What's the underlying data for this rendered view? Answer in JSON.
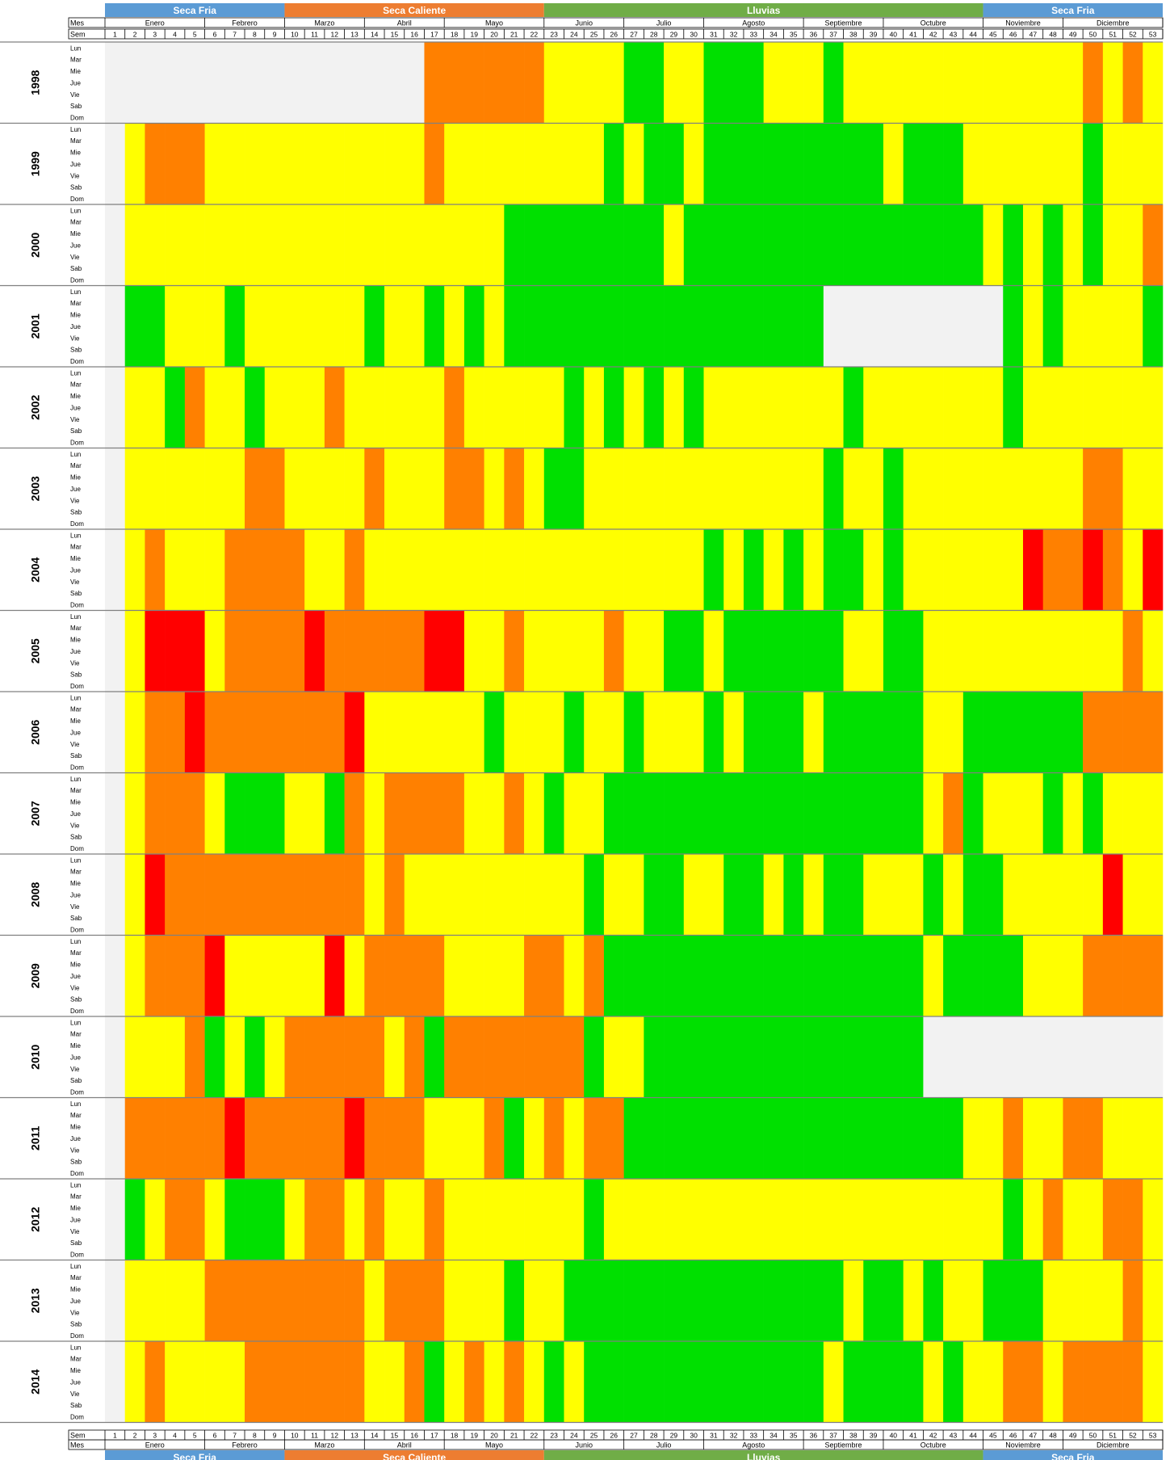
{
  "chart_data": {
    "type": "heatmap",
    "row_labels": {
      "month": "Mes",
      "week": "Sem"
    },
    "season_bands": [
      {
        "name": "Seca Fria",
        "weeks": [
          1,
          9
        ],
        "color": "#5b9bd5"
      },
      {
        "name": "Seca Caliente",
        "weeks": [
          10,
          22
        ],
        "color": "#ed7d31"
      },
      {
        "name": "Lluvias",
        "weeks": [
          23,
          44
        ],
        "color": "#70ad47"
      },
      {
        "name": "Seca Fria",
        "weeks": [
          45,
          53
        ],
        "color": "#5b9bd5"
      }
    ],
    "months": [
      {
        "name": "Enero",
        "weeks": [
          1,
          5
        ]
      },
      {
        "name": "Febrero",
        "weeks": [
          6,
          9
        ]
      },
      {
        "name": "Marzo",
        "weeks": [
          10,
          13
        ]
      },
      {
        "name": "Abril",
        "weeks": [
          14,
          17
        ]
      },
      {
        "name": "Mayo",
        "weeks": [
          18,
          22
        ]
      },
      {
        "name": "Junio",
        "weeks": [
          23,
          26
        ]
      },
      {
        "name": "Julio",
        "weeks": [
          27,
          30
        ]
      },
      {
        "name": "Agosto",
        "weeks": [
          31,
          35
        ]
      },
      {
        "name": "Septiembre",
        "weeks": [
          36,
          39
        ]
      },
      {
        "name": "Octubre",
        "weeks": [
          40,
          44
        ]
      },
      {
        "name": "Noviembre",
        "weeks": [
          45,
          48
        ]
      },
      {
        "name": "Diciembre",
        "weeks": [
          49,
          53
        ]
      }
    ],
    "weeks": [
      1,
      2,
      3,
      4,
      5,
      6,
      7,
      8,
      9,
      10,
      11,
      12,
      13,
      14,
      15,
      16,
      17,
      18,
      19,
      20,
      21,
      22,
      23,
      24,
      25,
      26,
      27,
      28,
      29,
      30,
      31,
      32,
      33,
      34,
      35,
      36,
      37,
      38,
      39,
      40,
      41,
      42,
      43,
      44,
      45,
      46,
      47,
      48,
      49,
      50,
      51,
      52,
      53
    ],
    "days": [
      "Lun",
      "Mar",
      "Mie",
      "Jue",
      "Vie",
      "Sab",
      "Dom"
    ],
    "years": [
      "1998",
      "1999",
      "2000",
      "2001",
      "2002",
      "2003",
      "2004",
      "2005",
      "2006",
      "2007",
      "2008",
      "2009",
      "2010",
      "2011",
      "2012",
      "2013",
      "2014"
    ],
    "category_colors": {
      "N": "#f2f2f2",
      "G": "#00e000",
      "Y": "#ffff00",
      "O": "#ff8000",
      "R": "#ff0000",
      "P": "#a0005a"
    },
    "weekly_levels": {
      "1998": "NNNNNNNNNNNNNNNNOOOOOOYYYYGGYYGGGYYYGYYYYYYYYYYYYOYOY",
      "1999": "NYOOOYYYYYYYYYYYOYYYYYYYYGYGGYGGGGGGGGGYGGGYYYYYYGYYY",
      "2000": "NYYYYYYYYYYYYYYYYYYYGGGGGGGGYGGGGGGGGGGGGGGGYGYGYGYYO",
      "2001": "NGGYYYGYYYYYYGYYGYGYGGGGGGGGGGGGGGGGNNNNNNNNNGYGYYYYG",
      "2002": "NYYGOYYGYYYOYYYYYOYYYYYGYGYGYGYYYYYYYGYYYYYYYGYYYYYYY",
      "2003": "NYYYYYYOOYYYYOYYYOOYOYGGYYYYYYYYYYYYGYYGYYYYYYYYYOOYY",
      "2004": "NYOYYYOOOOYYOYYYYYYYYYYYYYYYYYGYGYGYGGYGYYYYYYROOROYR",
      "2005": "NYRRRYOOOOROOOOORRYYOYYYYOYYGGYGGGGGGYYGGYYYYYYYYYYOY",
      "2006": "NYOOROOOOOOORYYYYYYGYYYGYYGYYYGYGGGYGGGGGYYGGGGGGOOOO",
      "2007": "NYOOOYGGGYYGOYOOOOYYOYGYYGGGGGGGGGGGGGGGGYOGYYYGYGYYY",
      "2008": "NYROOOOOOOOOOYOYYYYYYYYYGYYGGYYGGYGYGGYYYGYGGYYYYYRYY",
      "2009": "NYOOORYYYYYRYOOOOYYYYOOYOGGGGGGGGGGGGGGGGYGGGGYYYOOOO",
      "2010": "NYYYOGYGYOOOOOYOGOOOOOOOGYYGGGGGGGGGGGGGGNNNNNNNNNNNN",
      "2011": "NOOOOOROOOOOROOOYYYOGYOYOOGGGGGGGGGGGGGGGGGYYOYYOOYYY",
      "2012": "NGYOOYGGGYOOYOYYOYYYYYYYGYYYYYYYYYYYYYYYYYYYYGYOYYOOY",
      "2013": "NYYYYOOOOOOOOYOOOYYYGYYGGGGGGGGGGGGGGYGGYGYYGGGYYYYOY",
      "2014": "NYOYYYYOOOOOOYYOGYOYOYGYGGGGGGGGGGGGYGGGGYGYYOOYOOOOY"
    },
    "type_note": ""
  }
}
